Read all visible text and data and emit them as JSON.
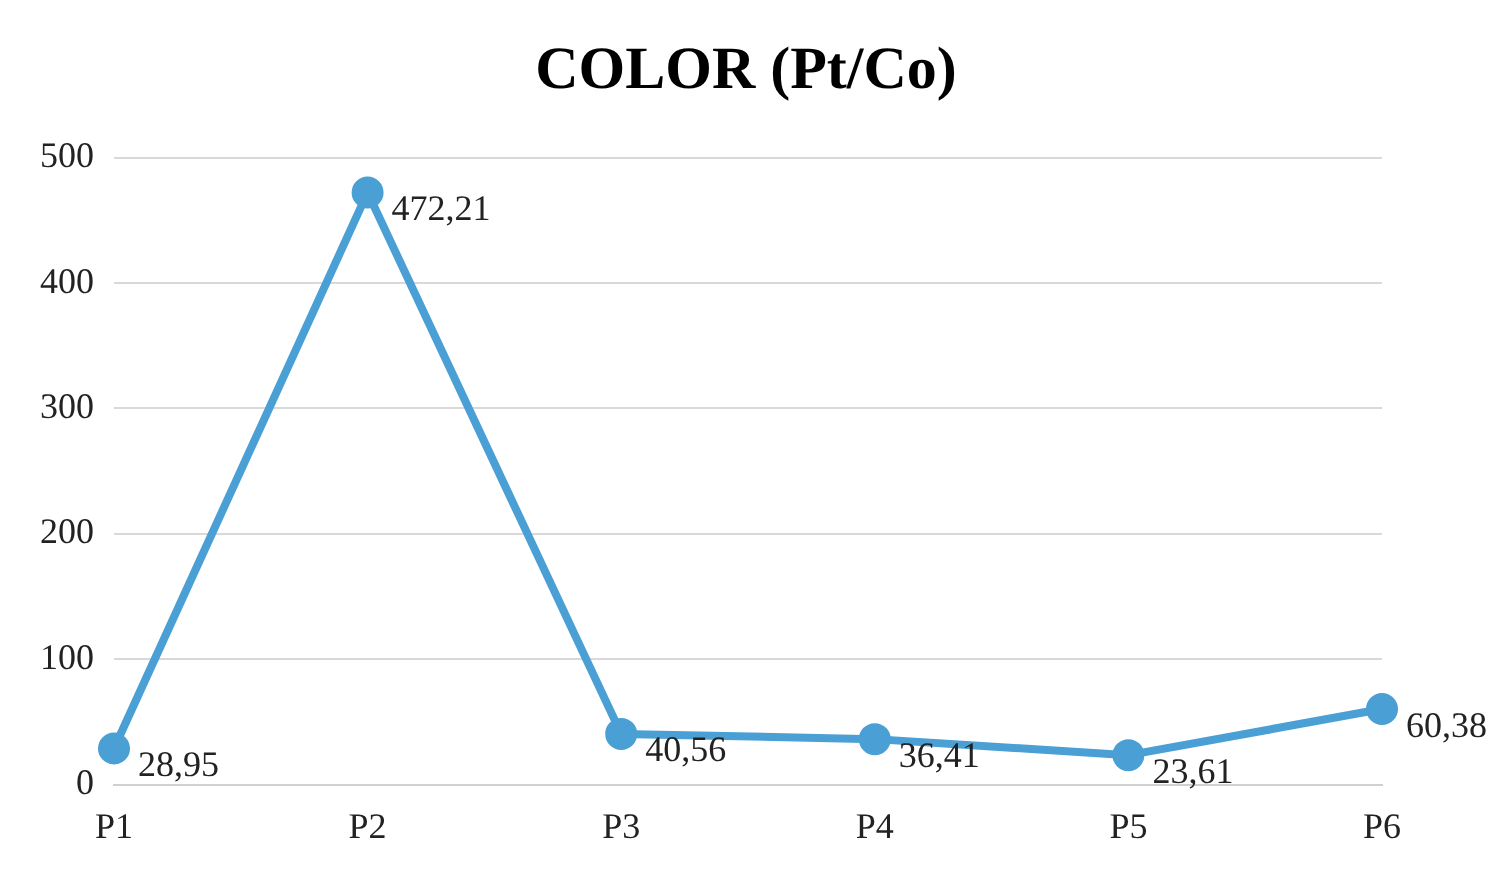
{
  "chart_data": {
    "type": "line",
    "title": "COLOR (Pt/Co)",
    "categories": [
      "P1",
      "P2",
      "P3",
      "P4",
      "P5",
      "P6"
    ],
    "series": [
      {
        "color": "#4a9fd5",
        "values": [
          28.95,
          472.21,
          40.56,
          36.41,
          23.61,
          60.38
        ],
        "value_labels": [
          "28,95",
          "472,21",
          "40,56",
          "36,41",
          "23,61",
          "60,38"
        ]
      }
    ],
    "ylim": [
      0,
      500
    ],
    "yticks": [
      0,
      100,
      200,
      300,
      400,
      500
    ],
    "grid": "y",
    "legend": false,
    "marker": "circle",
    "line_style": "solid"
  }
}
